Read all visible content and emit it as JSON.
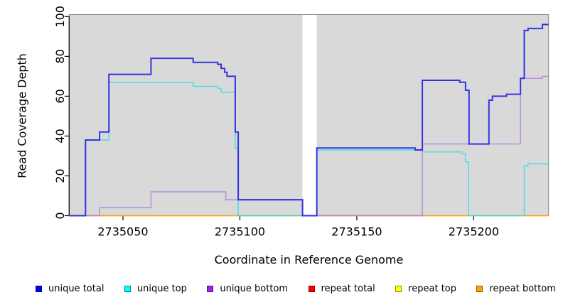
{
  "figure": {
    "xlabel": "Coordinate in Reference Genome",
    "ylabel": "Read Coverage Depth"
  },
  "chart_data": {
    "type": "line",
    "subtype": "step",
    "title": "",
    "xlabel": "Coordinate in Reference Genome",
    "ylabel": "Read Coverage Depth",
    "xlim": [
      2735027,
      2735232
    ],
    "ylim": [
      0,
      101
    ],
    "x_ticks": [
      2735050,
      2735100,
      2735150,
      2735200
    ],
    "y_ticks": [
      0,
      20,
      40,
      60,
      80,
      100
    ],
    "grid": false,
    "legend_position": "bottom",
    "panel_background": "#d9d9d9",
    "panels": [
      [
        2735027,
        2735126.8
      ],
      [
        2735132.9,
        2735232
      ]
    ],
    "no_data_gap": [
      2735126.8,
      2735132.9
    ],
    "x_end": 2735232,
    "legend": [
      {
        "label": "unique total",
        "color": "#0000FF"
      },
      {
        "label": "unique top",
        "color": "#00FFFF"
      },
      {
        "label": "unique bottom",
        "color": "#A020F0"
      },
      {
        "label": "repeat total",
        "color": "#FF0000"
      },
      {
        "label": "repeat top",
        "color": "#FFFF00"
      },
      {
        "label": "repeat bottom",
        "color": "#FFA500"
      }
    ],
    "series": [
      {
        "name": "repeat total",
        "color": "#e03131",
        "width": 1.2,
        "opacity": 0.9,
        "points": [
          [
            2735027,
            0
          ]
        ]
      },
      {
        "name": "repeat top",
        "color": "#f2f20c",
        "width": 1.2,
        "opacity": 0.9,
        "points": [
          [
            2735027,
            0
          ]
        ]
      },
      {
        "name": "repeat bottom",
        "color": "#ff9f1a",
        "width": 1.6,
        "opacity": 0.95,
        "points": [
          [
            2735027,
            0
          ]
        ]
      },
      {
        "name": "unique top",
        "color": "#35dbe2",
        "width": 1.4,
        "opacity": 0.9,
        "points": [
          [
            2735027,
            0
          ],
          [
            2735034,
            38
          ],
          [
            2735044,
            67
          ],
          [
            2735080,
            65
          ],
          [
            2735090.5,
            64
          ],
          [
            2735092,
            62
          ],
          [
            2735098,
            34
          ],
          [
            2735099.3,
            0
          ],
          [
            2735132.9,
            33
          ],
          [
            2735178,
            32
          ],
          [
            2735195,
            31
          ],
          [
            2735196.5,
            27
          ],
          [
            2735197.8,
            0
          ],
          [
            2735221.6,
            25
          ],
          [
            2735223.2,
            26
          ]
        ]
      },
      {
        "name": "unique bottom",
        "color": "#b07de4",
        "width": 1.4,
        "opacity": 0.9,
        "points": [
          [
            2735027,
            0
          ],
          [
            2735040,
            4
          ],
          [
            2735062,
            12
          ],
          [
            2735094,
            8
          ],
          [
            2735126.8,
            0
          ],
          [
            2735178,
            36
          ],
          [
            2735220,
            69
          ],
          [
            2735229.4,
            70
          ]
        ]
      },
      {
        "name": "unique total",
        "color": "#2b2be0",
        "width": 2,
        "opacity": 0.95,
        "points": [
          [
            2735027,
            0
          ],
          [
            2735034,
            38
          ],
          [
            2735040,
            42
          ],
          [
            2735044,
            71
          ],
          [
            2735062,
            79
          ],
          [
            2735080,
            77
          ],
          [
            2735090.5,
            76
          ],
          [
            2735092,
            74
          ],
          [
            2735093.5,
            72
          ],
          [
            2735094.5,
            70
          ],
          [
            2735098,
            42
          ],
          [
            2735099.3,
            8
          ],
          [
            2735126.8,
            0
          ],
          [
            2735132.9,
            34
          ],
          [
            2735175,
            33
          ],
          [
            2735178,
            68
          ],
          [
            2735194,
            67
          ],
          [
            2735196.5,
            63
          ],
          [
            2735198,
            36
          ],
          [
            2735206.5,
            58
          ],
          [
            2735208,
            60
          ],
          [
            2735214,
            61
          ],
          [
            2735220,
            69
          ],
          [
            2735221.6,
            93
          ],
          [
            2735223.2,
            94
          ],
          [
            2735229.4,
            96
          ]
        ]
      }
    ]
  }
}
